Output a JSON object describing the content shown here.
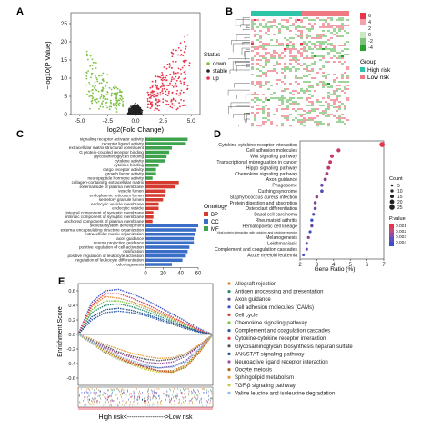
{
  "panel_labels": [
    "A",
    "B",
    "C",
    "D",
    "E"
  ],
  "chart_data": [
    {
      "panel": "A",
      "type": "scatter",
      "title": "",
      "xlabel": "log2(Fold Change)",
      "ylabel": "−log10(P Value)",
      "xlim": [
        -5.8,
        5.8
      ],
      "ylim": [
        0,
        28
      ],
      "xticks": [
        "-5.0",
        "-2.5",
        "0.0",
        "2.5",
        "5.0"
      ],
      "yticks": [
        "0",
        "5",
        "10",
        "15",
        "20",
        "25"
      ],
      "legend": {
        "title": "Status",
        "position": "right",
        "items": [
          "down",
          "stable",
          "up"
        ]
      },
      "series": [
        {
          "name": "down",
          "color": "#7dc242",
          "points_summary": "x from -4.5 to -1, y from 0.5 to 19"
        },
        {
          "name": "stable",
          "color": "#222222",
          "points_summary": "x from -1 to 1, y from 0 to 7"
        },
        {
          "name": "up",
          "color": "#e8354b",
          "points_summary": "x from 1 to 5, y from 0.5 to 27"
        }
      ]
    },
    {
      "panel": "B",
      "type": "heatmap",
      "title": "",
      "legend": {
        "color_title": "",
        "color_ticks": [
          "6",
          "4",
          "2",
          "0",
          "-2",
          "-4"
        ],
        "group_title": "Group",
        "groups": [
          {
            "name": "High risk",
            "color": "#2ec4a8"
          },
          {
            "name": "Low risk",
            "color": "#f07a82"
          }
        ]
      },
      "colors": {
        "high": "#e8354b",
        "mid": "#ffffff",
        "low": "#2ca02c"
      }
    },
    {
      "panel": "C",
      "type": "bar",
      "orientation": "horizontal",
      "title": "",
      "xlabel": "",
      "xlim": [
        0,
        60
      ],
      "xticks": [
        "0",
        "20",
        "40",
        "60"
      ],
      "legend": {
        "title": "Ontology",
        "position": "right",
        "items": [
          {
            "name": "BP",
            "color": "#d63b2f"
          },
          {
            "name": "CC",
            "color": "#3b6fc7"
          },
          {
            "name": "MF",
            "color": "#3fa34d"
          }
        ]
      },
      "bars": [
        {
          "label": "signaling receptor activator activity",
          "value": 48,
          "group": "MF"
        },
        {
          "label": "receptor ligand activity",
          "value": 46,
          "group": "MF"
        },
        {
          "label": "extracellular matrix structural constituent",
          "value": 30,
          "group": "MF"
        },
        {
          "label": "G protein-coupled receptor binding",
          "value": 27,
          "group": "MF"
        },
        {
          "label": "glycosaminoglycan binding",
          "value": 24,
          "group": "MF"
        },
        {
          "label": "cytokine activity",
          "value": 22,
          "group": "MF"
        },
        {
          "label": "cytokine binding",
          "value": 15,
          "group": "MF"
        },
        {
          "label": "cargo receptor activity",
          "value": 12,
          "group": "MF"
        },
        {
          "label": "growth factor activity",
          "value": 12,
          "group": "MF"
        },
        {
          "label": "neuropeptide hormone activity",
          "value": 8,
          "group": "MF"
        },
        {
          "label": "collagen-containing extracellular matrix",
          "value": 38,
          "group": "BP"
        },
        {
          "label": "external side of plasma membrane",
          "value": 34,
          "group": "BP"
        },
        {
          "label": "vesicle lumen",
          "value": 23,
          "group": "BP"
        },
        {
          "label": "endoplasmic reticulum lumen",
          "value": 22,
          "group": "BP"
        },
        {
          "label": "secretory granule lumen",
          "value": 20,
          "group": "BP"
        },
        {
          "label": "endocytic vesicle membrane",
          "value": 15,
          "group": "BP"
        },
        {
          "label": "endocytic vesicle",
          "value": 15,
          "group": "BP"
        },
        {
          "label": "integral component of synaptic membrane",
          "value": 9,
          "group": "BP"
        },
        {
          "label": "intrinsic component of synaptic membrane",
          "value": 9,
          "group": "BP"
        },
        {
          "label": "anchored component of plasma membrane",
          "value": 8,
          "group": "BP"
        },
        {
          "label": "skeletal system development",
          "value": 60,
          "group": "CC"
        },
        {
          "label": "external encapsulating structure organization",
          "value": 58,
          "group": "CC"
        },
        {
          "label": "extracellular matrix organization",
          "value": 56,
          "group": "CC"
        },
        {
          "label": "axon guidance",
          "value": 55,
          "group": "CC"
        },
        {
          "label": "neuron projection guidance",
          "value": 55,
          "group": "CC"
        },
        {
          "label": "positive regulation of cell activation",
          "value": 50,
          "group": "CC"
        },
        {
          "label": "ossification",
          "value": 48,
          "group": "CC"
        },
        {
          "label": "positive regulation of leukocyte activation",
          "value": 46,
          "group": "CC"
        },
        {
          "label": "regulation of leukocyte differentiation",
          "value": 42,
          "group": "CC"
        },
        {
          "label": "odontogenesis",
          "value": 30,
          "group": "CC"
        }
      ]
    },
    {
      "panel": "D",
      "type": "scatter",
      "title": "",
      "xlabel": "Gene Ratio (%)",
      "xlim": [
        2,
        7
      ],
      "xticks": [
        "2",
        "3",
        "4",
        "5",
        "6",
        "7"
      ],
      "legend": {
        "size_title": "Count",
        "size_items": [
          "5",
          "10",
          "15",
          "20",
          "25"
        ],
        "color_title": "P.value",
        "color_ticks": [
          "0.001",
          "0.002",
          "0.003",
          "0.004"
        ],
        "color_low": "#e8354b",
        "color_high": "#3b4fc7"
      },
      "points": [
        {
          "term": "Cytokine-cytokine receptor interaction",
          "ratio": 6.9,
          "count": 26,
          "pvalue": 0.0001
        },
        {
          "term": "Cell adhesion molecules",
          "ratio": 4.3,
          "count": 16,
          "pvalue": 0.0008
        },
        {
          "term": "Wnt signaling pathway",
          "ratio": 3.9,
          "count": 15,
          "pvalue": 0.0007
        },
        {
          "term": "Transcriptional misregulation in cancer",
          "ratio": 3.8,
          "count": 14,
          "pvalue": 0.0009
        },
        {
          "term": "Hippo signaling pathway",
          "ratio": 3.7,
          "count": 14,
          "pvalue": 0.001
        },
        {
          "term": "Chemokine signaling pathway",
          "ratio": 3.6,
          "count": 13,
          "pvalue": 0.0015
        },
        {
          "term": "Axon guidance",
          "ratio": 3.5,
          "count": 13,
          "pvalue": 0.002
        },
        {
          "term": "Phagosome",
          "ratio": 3.3,
          "count": 12,
          "pvalue": 0.003
        },
        {
          "term": "Cushing syndrome",
          "ratio": 3.3,
          "count": 12,
          "pvalue": 0.0035
        },
        {
          "term": "Staphylococcus aureus infection",
          "ratio": 3.0,
          "count": 11,
          "pvalue": 0.002
        },
        {
          "term": "Protein digestion and absorption",
          "ratio": 2.9,
          "count": 11,
          "pvalue": 0.0025
        },
        {
          "term": "Osteoclast differentiation",
          "ratio": 2.9,
          "count": 11,
          "pvalue": 0.003
        },
        {
          "term": "Basal cell carcinoma",
          "ratio": 2.8,
          "count": 10,
          "pvalue": 0.0035
        },
        {
          "term": "Rheumatoid arthritis",
          "ratio": 2.7,
          "count": 10,
          "pvalue": 0.004
        },
        {
          "term": "Hematopoietic cell lineage",
          "ratio": 2.7,
          "count": 10,
          "pvalue": 0.003
        },
        {
          "term": "Viral protein interaction with cytokine and cytokine receptor",
          "ratio": 2.6,
          "count": 9,
          "pvalue": 0.004
        },
        {
          "term": "Melanogenesis",
          "ratio": 2.5,
          "count": 9,
          "pvalue": 0.002
        },
        {
          "term": "Leishmaniasis",
          "ratio": 2.4,
          "count": 8,
          "pvalue": 0.0035
        },
        {
          "term": "Complement and coagulation cascades",
          "ratio": 2.4,
          "count": 8,
          "pvalue": 0.003
        },
        {
          "term": "Acute myeloid leukemia",
          "ratio": 2.2,
          "count": 7,
          "pvalue": 0.004
        }
      ]
    },
    {
      "panel": "E",
      "type": "line",
      "title": "",
      "ylabel": "Enrichment Score",
      "xlabel": "High risk<------------------>Low risk",
      "ylim": [
        -0.7,
        0.7
      ],
      "yticks": [
        "0.6",
        "0.4",
        "0.2",
        "0.0",
        "-0.2",
        "-0.4",
        "-0.6"
      ],
      "series": [
        {
          "name": "Allograft rejection",
          "color": "#e8832d",
          "x": [
            0,
            0.1,
            0.2,
            0.3,
            0.4,
            0.5,
            0.6,
            0.7,
            0.8,
            0.9,
            1.0
          ],
          "y": [
            0,
            0.38,
            0.52,
            0.5,
            0.45,
            0.38,
            0.3,
            0.22,
            0.14,
            0.06,
            0
          ]
        },
        {
          "name": "Antigen processing and presentation",
          "color": "#2d8a6e",
          "x": [
            0,
            0.1,
            0.2,
            0.3,
            0.4,
            0.5,
            0.6,
            0.7,
            0.8,
            0.9,
            1.0
          ],
          "y": [
            0,
            0.3,
            0.4,
            0.42,
            0.38,
            0.32,
            0.25,
            0.18,
            0.1,
            0.04,
            0
          ]
        },
        {
          "name": "Axon guidance",
          "color": "#6b4fa0",
          "x": [
            0,
            0.1,
            0.2,
            0.3,
            0.4,
            0.5,
            0.6,
            0.7,
            0.8,
            0.9,
            1.0
          ],
          "y": [
            0,
            -0.12,
            -0.25,
            -0.34,
            -0.4,
            -0.44,
            -0.46,
            -0.44,
            -0.36,
            -0.2,
            0
          ]
        },
        {
          "name": "Cell adhesion molecules (CAMs)",
          "color": "#3b4fc7",
          "x": [
            0,
            0.1,
            0.2,
            0.3,
            0.4,
            0.5,
            0.6,
            0.7,
            0.8,
            0.9,
            1.0
          ],
          "y": [
            0,
            0.44,
            0.6,
            0.62,
            0.56,
            0.48,
            0.38,
            0.28,
            0.18,
            0.08,
            0
          ]
        },
        {
          "name": "Cell cycle",
          "color": "#d63b2f",
          "x": [
            0,
            0.1,
            0.2,
            0.3,
            0.4,
            0.5,
            0.6,
            0.7,
            0.8,
            0.9,
            1.0
          ],
          "y": [
            0,
            -0.1,
            -0.2,
            -0.3,
            -0.38,
            -0.45,
            -0.5,
            -0.52,
            -0.45,
            -0.25,
            0
          ]
        },
        {
          "name": "Chemokine signaling pathway",
          "color": "#7dc242",
          "x": [
            0,
            0.1,
            0.2,
            0.3,
            0.4,
            0.5,
            0.6,
            0.7,
            0.8,
            0.9,
            1.0
          ],
          "y": [
            0,
            0.34,
            0.46,
            0.46,
            0.42,
            0.35,
            0.28,
            0.2,
            0.12,
            0.05,
            0
          ]
        },
        {
          "name": "Complement and coagulation cascades",
          "color": "#2b5aa8",
          "x": [
            0,
            0.1,
            0.2,
            0.3,
            0.4,
            0.5,
            0.6,
            0.7,
            0.8,
            0.9,
            1.0
          ],
          "y": [
            0,
            0.2,
            0.3,
            0.32,
            0.3,
            0.26,
            0.2,
            0.14,
            0.08,
            0.03,
            0
          ]
        },
        {
          "name": "Cytokine-cytokine receptor interaction",
          "color": "#e8354b",
          "x": [
            0,
            0.1,
            0.2,
            0.3,
            0.4,
            0.5,
            0.6,
            0.7,
            0.8,
            0.9,
            1.0
          ],
          "y": [
            0,
            0.4,
            0.56,
            0.56,
            0.5,
            0.42,
            0.33,
            0.24,
            0.15,
            0.06,
            0
          ]
        },
        {
          "name": "Glycosaminoglycan biosynthesis heparan sulfate",
          "color": "#555555",
          "x": [
            0,
            0.1,
            0.2,
            0.3,
            0.4,
            0.5,
            0.6,
            0.7,
            0.8,
            0.9,
            1.0
          ],
          "y": [
            0,
            -0.08,
            -0.16,
            -0.24,
            -0.3,
            -0.34,
            -0.36,
            -0.34,
            -0.28,
            -0.15,
            0
          ]
        },
        {
          "name": "JAK/STAT signaling pathway",
          "color": "#1f4e8c",
          "x": [
            0,
            0.1,
            0.2,
            0.3,
            0.4,
            0.5,
            0.6,
            0.7,
            0.8,
            0.9,
            1.0
          ],
          "y": [
            0,
            0.24,
            0.34,
            0.36,
            0.33,
            0.28,
            0.22,
            0.16,
            0.1,
            0.04,
            0
          ]
        },
        {
          "name": "Neuroactive ligand receptor interaction",
          "color": "#9c4f9f",
          "x": [
            0,
            0.1,
            0.2,
            0.3,
            0.4,
            0.5,
            0.6,
            0.7,
            0.8,
            0.9,
            1.0
          ],
          "y": [
            0,
            -0.1,
            -0.18,
            -0.26,
            -0.32,
            -0.38,
            -0.4,
            -0.38,
            -0.3,
            -0.16,
            0
          ]
        },
        {
          "name": "Oocyte meiosis",
          "color": "#b5651d",
          "x": [
            0,
            0.1,
            0.2,
            0.3,
            0.4,
            0.5,
            0.6,
            0.7,
            0.8,
            0.9,
            1.0
          ],
          "y": [
            0,
            -0.1,
            -0.22,
            -0.32,
            -0.4,
            -0.46,
            -0.5,
            -0.5,
            -0.42,
            -0.22,
            0
          ]
        },
        {
          "name": "Sphingolipid metabolism",
          "color": "#e89b2d",
          "x": [
            0,
            0.1,
            0.2,
            0.3,
            0.4,
            0.5,
            0.6,
            0.7,
            0.8,
            0.9,
            1.0
          ],
          "y": [
            0,
            -0.06,
            -0.14,
            -0.2,
            -0.26,
            -0.3,
            -0.33,
            -0.32,
            -0.26,
            -0.14,
            0
          ]
        },
        {
          "name": "TGF-β signaling pathway",
          "color": "#c8c83a",
          "x": [
            0,
            0.1,
            0.2,
            0.3,
            0.4,
            0.5,
            0.6,
            0.7,
            0.8,
            0.9,
            1.0
          ],
          "y": [
            0,
            -0.12,
            -0.24,
            -0.34,
            -0.42,
            -0.48,
            -0.52,
            -0.52,
            -0.44,
            -0.24,
            0
          ]
        },
        {
          "name": "Valine leucine and isoleucine degradation",
          "color": "#8bb8e8",
          "x": [
            0,
            0.1,
            0.2,
            0.3,
            0.4,
            0.5,
            0.6,
            0.7,
            0.8,
            0.9,
            1.0
          ],
          "y": [
            0,
            -0.1,
            -0.2,
            -0.3,
            -0.36,
            -0.42,
            -0.46,
            -0.45,
            -0.38,
            -0.2,
            0
          ]
        }
      ]
    }
  ]
}
